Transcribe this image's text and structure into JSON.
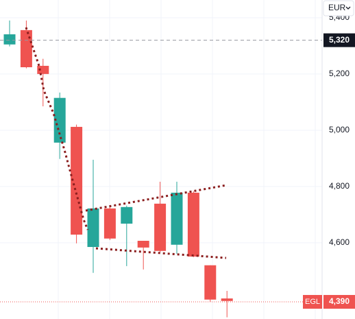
{
  "currency": "EUR",
  "chart_data": {
    "type": "candlestick",
    "ylim": [
      4329,
      5463
    ],
    "yticks": [
      {
        "value": 5400,
        "label": "5,400"
      },
      {
        "value": 5200,
        "label": "5,200"
      },
      {
        "value": 5000,
        "label": "5,000"
      },
      {
        "value": 4800,
        "label": "4,800"
      },
      {
        "value": 4600,
        "label": "4,600"
      }
    ],
    "grid": true,
    "up_color": "#26a69a",
    "down_color": "#ef5350",
    "open": [
      5305,
      5356,
      5229,
      4956,
      5012,
      4585,
      4722,
      4668,
      4607,
      4739,
      4593,
      4778,
      4520,
      4402
    ],
    "high": [
      5390,
      5390,
      5254,
      5134,
      5020,
      4895,
      4732,
      4732,
      4607,
      4817,
      4817,
      4783,
      4520,
      4429
    ],
    "low": [
      5298,
      5220,
      5085,
      4898,
      4598,
      4493,
      4610,
      4517,
      4505,
      4566,
      4561,
      4549,
      4390,
      4335
    ],
    "close": [
      5341,
      5224,
      5200,
      5115,
      4629,
      4722,
      4615,
      4727,
      4583,
      4571,
      4778,
      4551,
      4398,
      4393
    ],
    "price_lines": [
      {
        "value": 5320,
        "label": "5,320"
      },
      {
        "value": 4390,
        "label": "4,390",
        "name": "EGL"
      }
    ]
  }
}
